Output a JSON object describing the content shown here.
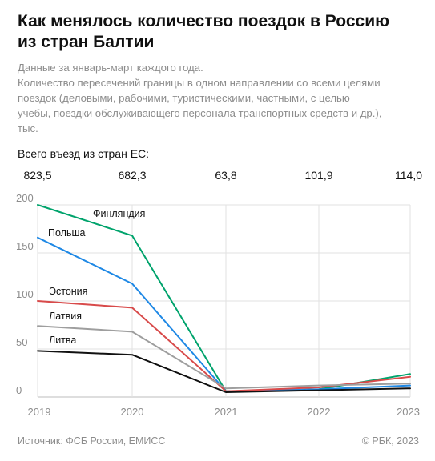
{
  "header": {
    "title_line1": "Как менялось количество поездок в Россию",
    "title_line2": "из стран Балтии",
    "subtitle_lines": [
      "Данные за январь-март каждого года.",
      "Количество пересечений границы в одном направлении со всеми целями",
      "поездок (деловыми, рабочими, туристическими, частными, с целью",
      "учебы, поездки обслуживающего персонала транспортных средств и др.),",
      "тыс."
    ]
  },
  "eu_total": {
    "label": "Всего въезд из стран ЕС:",
    "values": [
      "823,5",
      "682,3",
      "63,8",
      "101,9",
      "114,0"
    ]
  },
  "chart_data": {
    "type": "line",
    "x": [
      "2019",
      "2020",
      "2021",
      "2022",
      "2023"
    ],
    "ylim": [
      0,
      200
    ],
    "yticks": [
      "0",
      "50",
      "100",
      "150",
      "200"
    ],
    "grid": true,
    "series": [
      {
        "name": "Финляндия",
        "color": "#00a36c",
        "values": [
          200,
          168,
          6,
          8,
          24
        ]
      },
      {
        "name": "Польша",
        "color": "#1e88e5",
        "values": [
          166,
          118,
          6,
          8,
          12
        ]
      },
      {
        "name": "Эстония",
        "color": "#d84a4a",
        "values": [
          100,
          93,
          6,
          10,
          21
        ]
      },
      {
        "name": "Латвия",
        "color": "#9e9e9e",
        "values": [
          74,
          68,
          9,
          12,
          14
        ]
      },
      {
        "name": "Литва",
        "color": "#111111",
        "values": [
          48,
          44,
          5,
          7,
          9
        ]
      }
    ]
  },
  "footer": {
    "source": "Источник: ФСБ России, ЕМИСС",
    "copyright": "© РБК, 2023"
  }
}
